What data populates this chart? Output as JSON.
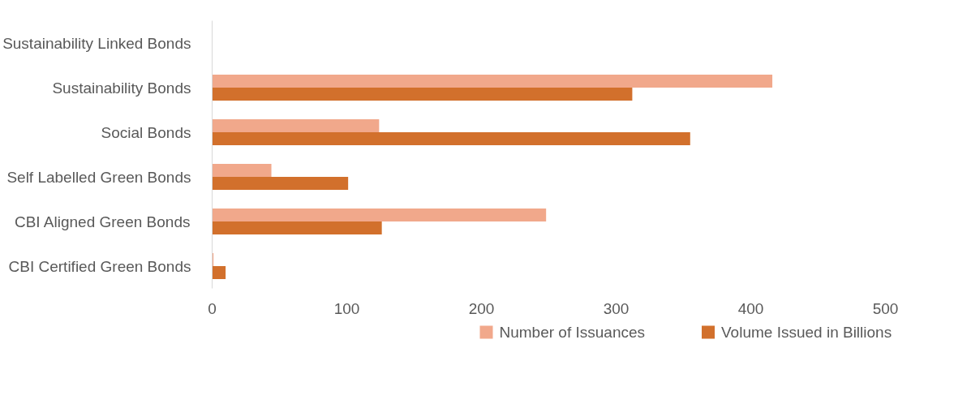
{
  "chart_data": {
    "type": "bar",
    "orientation": "horizontal",
    "categories": [
      "Sustainability Linked Bonds",
      "Sustainability Bonds",
      "Social Bonds",
      "Self Labelled Green Bonds",
      "CBI Aligned Green Bonds",
      "CBI Certified Green Bonds"
    ],
    "series": [
      {
        "name": "Number of Issuances",
        "color": "#f1a88b",
        "values": [
          0,
          416,
          124,
          44,
          248,
          1
        ]
      },
      {
        "name": "Volume Issued in Billions",
        "color": "#d2702c",
        "values": [
          0,
          312,
          355,
          101,
          126,
          10
        ]
      }
    ],
    "xlim": [
      0,
      500
    ],
    "xticks": [
      0,
      100,
      200,
      300,
      400,
      500
    ],
    "grid": false,
    "legend": "bottom"
  }
}
